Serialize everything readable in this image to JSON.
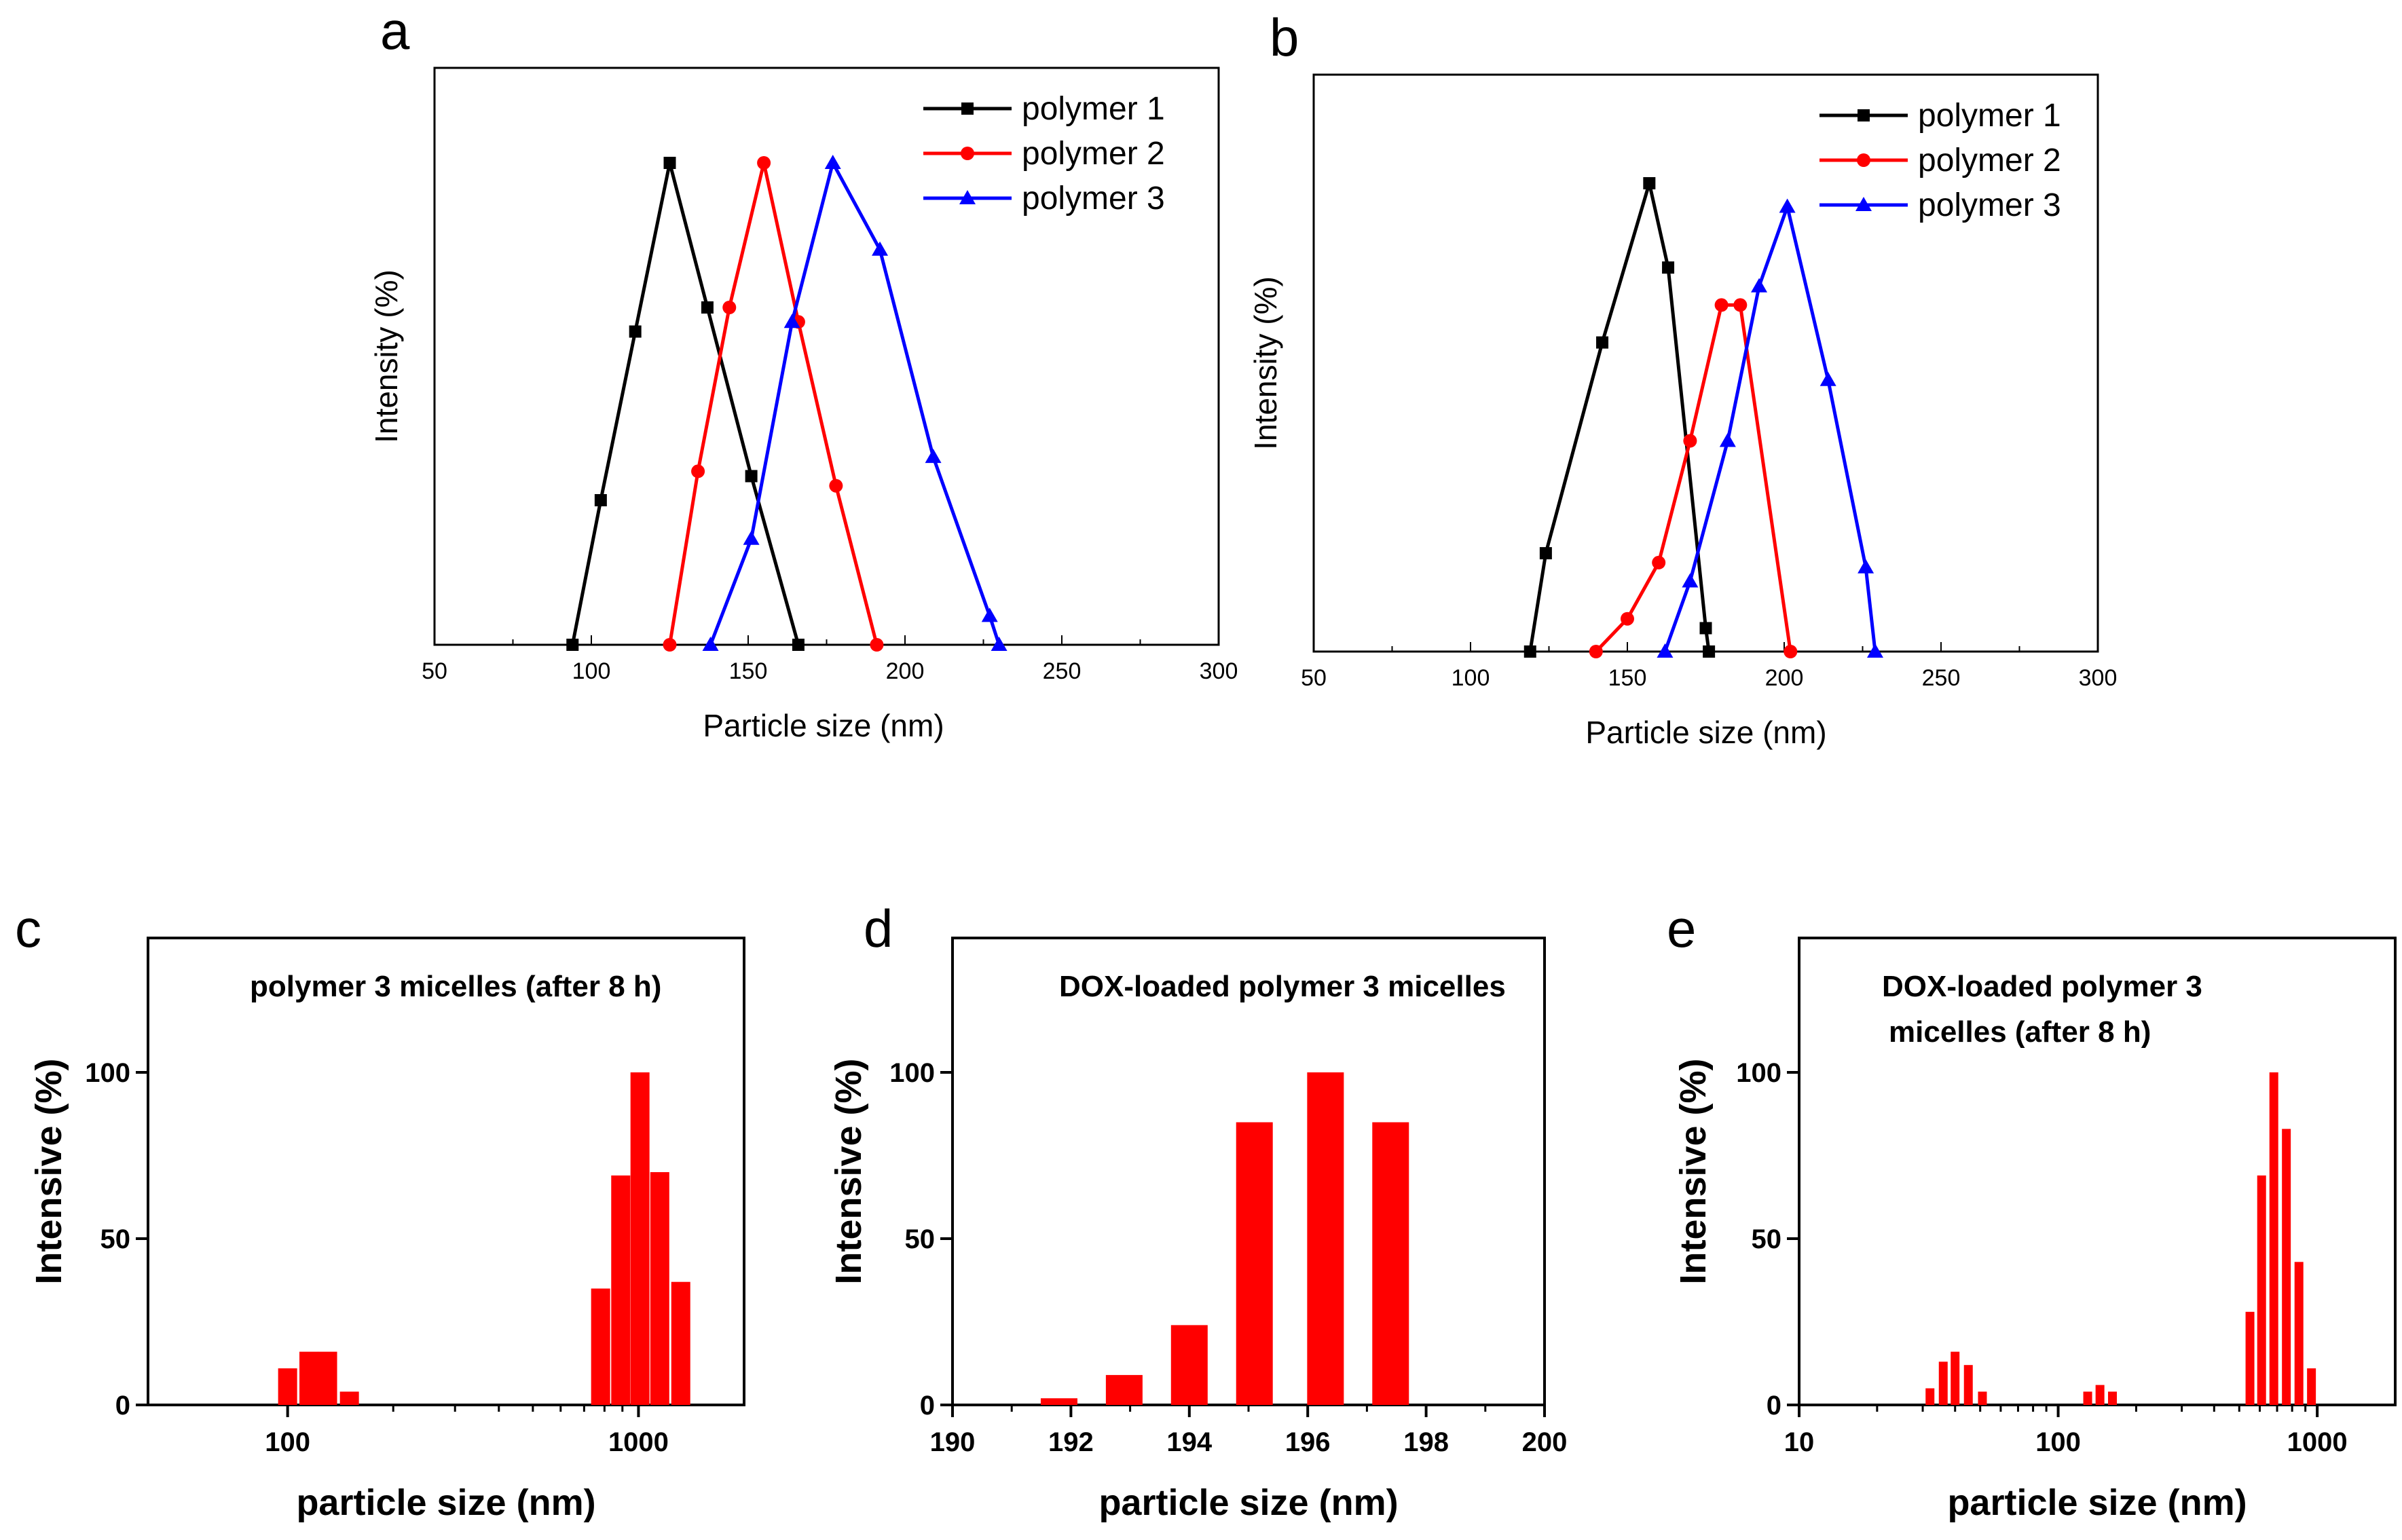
{
  "chart_data": [
    {
      "panel": "a",
      "type": "line",
      "xlabel": "Particle size (nm)",
      "ylabel": "Intensity (%)",
      "xlim": [
        50,
        300
      ],
      "ylim": [
        0,
        100
      ],
      "xticks": [
        50,
        100,
        150,
        200,
        250,
        300
      ],
      "legend": "top-right",
      "series": [
        {
          "name": "polymer  1",
          "color": "#000000",
          "marker": "square",
          "x": [
            94,
            103,
            114,
            125,
            137,
            151,
            166
          ],
          "y": [
            0,
            30,
            65,
            100,
            70,
            35,
            0
          ]
        },
        {
          "name": "polymer  2",
          "color": "#ff0000",
          "marker": "circle",
          "x": [
            125,
            134,
            144,
            155,
            166,
            178,
            191
          ],
          "y": [
            0,
            36,
            70,
            100,
            67,
            33,
            0
          ]
        },
        {
          "name": "polymer  3",
          "color": "#0000ff",
          "marker": "triangle",
          "x": [
            138,
            151,
            164,
            177,
            192,
            209,
            227,
            230
          ],
          "y": [
            0,
            22,
            67,
            100,
            82,
            39,
            6,
            0
          ]
        }
      ]
    },
    {
      "panel": "b",
      "type": "line",
      "xlabel": "Particle size (nm)",
      "ylabel": "Intensity (%)",
      "xlim": [
        50,
        300
      ],
      "ylim": [
        0,
        100
      ],
      "xticks": [
        50,
        100,
        150,
        200,
        250,
        300
      ],
      "legend": "top-right",
      "series": [
        {
          "name": "polymer  1",
          "color": "#000000",
          "marker": "square",
          "x": [
            119,
            124,
            142,
            157,
            163,
            175,
            176
          ],
          "y": [
            0,
            21,
            66,
            100,
            82,
            5,
            0
          ]
        },
        {
          "name": "polymer  2",
          "color": "#ff0000",
          "marker": "circle",
          "x": [
            140,
            150,
            160,
            170,
            180,
            186,
            202
          ],
          "y": [
            0,
            7,
            19,
            45,
            74,
            74,
            0
          ]
        },
        {
          "name": "polymer  3",
          "color": "#0000ff",
          "marker": "triangle",
          "x": [
            162,
            170,
            182,
            192,
            201,
            214,
            226,
            229
          ],
          "y": [
            0,
            15,
            45,
            78,
            95,
            58,
            18,
            0
          ]
        }
      ]
    },
    {
      "panel": "c",
      "type": "bar",
      "title": "polymer 3 micelles (after 8 h)",
      "xlabel": "particle size (nm)",
      "ylabel": "Intensive (%)",
      "xscale": "log",
      "xlim": [
        40,
        2000
      ],
      "ylim": [
        0,
        140
      ],
      "xticks": [
        100,
        1000
      ],
      "xtick_labels": [
        "100",
        "1000"
      ],
      "yticks": [
        0,
        50,
        100
      ],
      "ytick_labels": [
        "0",
        "50",
        "100"
      ],
      "color": "#ff0000",
      "x": [
        100,
        115,
        130,
        150,
        780,
        890,
        1010,
        1150,
        1320
      ],
      "values": [
        11,
        16,
        16,
        4,
        35,
        69,
        100,
        70,
        37
      ]
    },
    {
      "panel": "d",
      "type": "bar",
      "title": "DOX-loaded polymer 3 micelles",
      "xlabel": "particle size (nm)",
      "ylabel": "Intensive (%)",
      "xscale": "linear",
      "xlim": [
        190,
        200
      ],
      "ylim": [
        0,
        140
      ],
      "xticks": [
        190,
        192,
        194,
        196,
        198,
        200
      ],
      "xtick_labels": [
        "190",
        "192",
        "194",
        "196",
        "198",
        "200"
      ],
      "yticks": [
        0,
        50,
        100
      ],
      "ytick_labels": [
        "0",
        "50",
        "100"
      ],
      "color": "#ff0000",
      "x": [
        191.8,
        192.9,
        194.0,
        195.1,
        196.3,
        197.4
      ],
      "values": [
        2,
        9,
        24,
        85,
        100,
        85
      ]
    },
    {
      "panel": "e",
      "type": "bar",
      "title": "DOX-loaded polymer 3",
      "title_line2": "micelles (after 8 h)",
      "xlabel": "particle size (nm)",
      "ylabel": "Intensive (%)",
      "xscale": "log",
      "xlim": [
        10,
        2000
      ],
      "ylim": [
        0,
        140
      ],
      "xticks": [
        10,
        100,
        1000
      ],
      "xtick_labels": [
        "10",
        "100",
        "1000"
      ],
      "yticks": [
        0,
        50,
        100
      ],
      "ytick_labels": [
        "0",
        "50",
        "100"
      ],
      "color": "#ff0000",
      "x": [
        32,
        36,
        40,
        45,
        51,
        130,
        145,
        162,
        550,
        610,
        680,
        760,
        850,
        950,
        1070
      ],
      "values": [
        5,
        13,
        16,
        12,
        4,
        4,
        6,
        4,
        28,
        69,
        100,
        83,
        43,
        11,
        0
      ]
    }
  ]
}
